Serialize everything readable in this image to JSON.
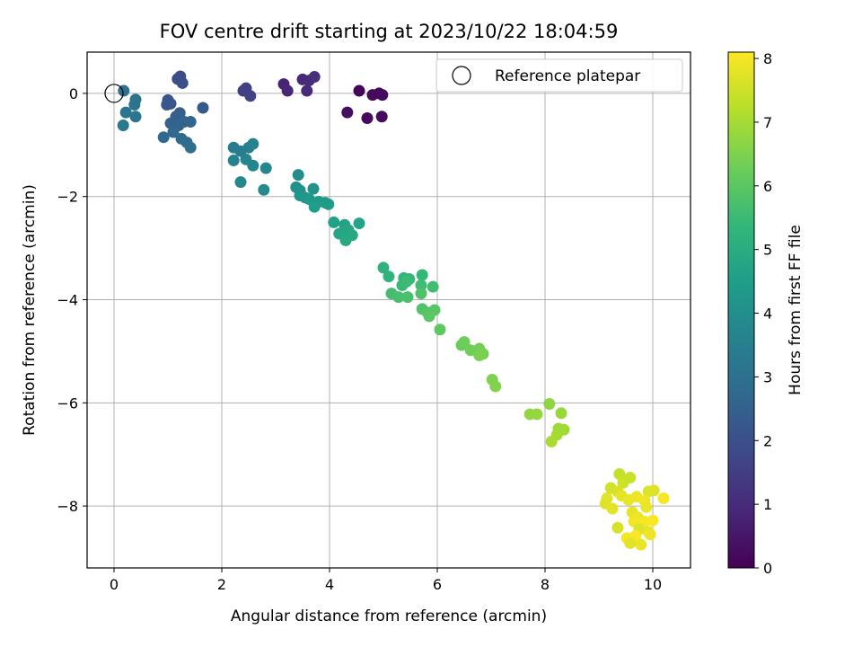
{
  "chart_data": {
    "type": "scatter",
    "title": "FOV centre drift starting at 2023/10/22 18:04:59",
    "xlabel": "Angular distance from reference (arcmin)",
    "ylabel": "Rotation from reference (arcmin)",
    "xlim": [
      -0.5,
      10.7
    ],
    "ylim": [
      -9.2,
      0.8
    ],
    "xticks": [
      0,
      2,
      4,
      6,
      8,
      10
    ],
    "yticks": [
      0,
      -2,
      -4,
      -6,
      -8
    ],
    "grid": true,
    "legend": {
      "placement": "top-right",
      "entries": [
        "Reference platepar"
      ]
    },
    "reference_point": {
      "name": "Reference platepar",
      "x": 0,
      "y": 0
    },
    "colorbar": {
      "label": "Hours from first FF file",
      "min": 0,
      "max": 8.1,
      "ticks": [
        0,
        1,
        2,
        3,
        4,
        5,
        6,
        7,
        8
      ],
      "colormap": "viridis"
    },
    "colormap_stops": [
      "#440154",
      "#482878",
      "#3e4989",
      "#31688e",
      "#26828e",
      "#1f9e89",
      "#35b779",
      "#6ece58",
      "#b5de2b",
      "#fde725"
    ],
    "points": [
      {
        "x": 4.55,
        "y": 0.05,
        "c": 0.1
      },
      {
        "x": 4.8,
        "y": -0.03,
        "c": 0.2
      },
      {
        "x": 4.92,
        "y": 0.0,
        "c": 0.15
      },
      {
        "x": 4.98,
        "y": -0.03,
        "c": 0.25
      },
      {
        "x": 4.33,
        "y": -0.37,
        "c": 0.3
      },
      {
        "x": 4.7,
        "y": -0.48,
        "c": 0.2
      },
      {
        "x": 4.97,
        "y": -0.45,
        "c": 0.25
      },
      {
        "x": 3.15,
        "y": 0.18,
        "c": 0.8
      },
      {
        "x": 3.22,
        "y": 0.05,
        "c": 0.85
      },
      {
        "x": 3.5,
        "y": 0.27,
        "c": 0.9
      },
      {
        "x": 3.58,
        "y": 0.05,
        "c": 0.95
      },
      {
        "x": 3.62,
        "y": 0.25,
        "c": 1.0
      },
      {
        "x": 3.72,
        "y": 0.32,
        "c": 1.05
      },
      {
        "x": 2.4,
        "y": 0.05,
        "c": 1.5
      },
      {
        "x": 2.45,
        "y": 0.1,
        "c": 1.55
      },
      {
        "x": 2.53,
        "y": -0.05,
        "c": 1.6
      },
      {
        "x": 1.18,
        "y": 0.28,
        "c": 1.9
      },
      {
        "x": 1.23,
        "y": 0.33,
        "c": 1.95
      },
      {
        "x": 1.27,
        "y": 0.2,
        "c": 2.0
      },
      {
        "x": 1.0,
        "y": -0.13,
        "c": 2.1
      },
      {
        "x": 1.05,
        "y": -0.2,
        "c": 2.15
      },
      {
        "x": 0.98,
        "y": -0.22,
        "c": 2.2
      },
      {
        "x": 1.65,
        "y": -0.28,
        "c": 2.3
      },
      {
        "x": 1.22,
        "y": -0.38,
        "c": 2.4
      },
      {
        "x": 1.15,
        "y": -0.45,
        "c": 2.45
      },
      {
        "x": 1.05,
        "y": -0.58,
        "c": 2.5
      },
      {
        "x": 1.2,
        "y": -0.62,
        "c": 2.55
      },
      {
        "x": 1.3,
        "y": -0.55,
        "c": 2.6
      },
      {
        "x": 1.42,
        "y": -0.55,
        "c": 2.65
      },
      {
        "x": 1.1,
        "y": -0.75,
        "c": 2.7
      },
      {
        "x": 0.92,
        "y": -0.85,
        "c": 2.75
      },
      {
        "x": 1.25,
        "y": -0.88,
        "c": 2.8
      },
      {
        "x": 1.35,
        "y": -0.95,
        "c": 2.85
      },
      {
        "x": 1.42,
        "y": -1.05,
        "c": 2.9
      },
      {
        "x": 0.18,
        "y": 0.05,
        "c": 3.0
      },
      {
        "x": 0.4,
        "y": -0.12,
        "c": 3.05
      },
      {
        "x": 0.38,
        "y": -0.22,
        "c": 3.1
      },
      {
        "x": 0.22,
        "y": -0.37,
        "c": 3.15
      },
      {
        "x": 0.4,
        "y": -0.45,
        "c": 3.2
      },
      {
        "x": 0.17,
        "y": -0.62,
        "c": 3.25
      },
      {
        "x": 2.22,
        "y": -1.05,
        "c": 3.4
      },
      {
        "x": 2.35,
        "y": -1.12,
        "c": 3.45
      },
      {
        "x": 2.5,
        "y": -1.05,
        "c": 3.5
      },
      {
        "x": 2.58,
        "y": -0.98,
        "c": 3.55
      },
      {
        "x": 2.22,
        "y": -1.3,
        "c": 3.6
      },
      {
        "x": 2.45,
        "y": -1.28,
        "c": 3.65
      },
      {
        "x": 2.58,
        "y": -1.4,
        "c": 3.7
      },
      {
        "x": 2.82,
        "y": -1.45,
        "c": 3.75
      },
      {
        "x": 2.35,
        "y": -1.72,
        "c": 3.8
      },
      {
        "x": 2.78,
        "y": -1.87,
        "c": 3.85
      },
      {
        "x": 3.42,
        "y": -1.58,
        "c": 4.0
      },
      {
        "x": 3.38,
        "y": -1.82,
        "c": 4.05
      },
      {
        "x": 3.45,
        "y": -1.88,
        "c": 4.1
      },
      {
        "x": 3.7,
        "y": -1.85,
        "c": 4.15
      },
      {
        "x": 3.45,
        "y": -1.98,
        "c": 4.2
      },
      {
        "x": 3.55,
        "y": -2.02,
        "c": 4.25
      },
      {
        "x": 3.62,
        "y": -2.05,
        "c": 4.3
      },
      {
        "x": 3.8,
        "y": -2.1,
        "c": 4.35
      },
      {
        "x": 3.92,
        "y": -2.12,
        "c": 4.4
      },
      {
        "x": 3.98,
        "y": -2.15,
        "c": 4.45
      },
      {
        "x": 3.72,
        "y": -2.2,
        "c": 4.5
      },
      {
        "x": 4.08,
        "y": -2.5,
        "c": 4.6
      },
      {
        "x": 4.28,
        "y": -2.55,
        "c": 4.65
      },
      {
        "x": 4.55,
        "y": -2.52,
        "c": 4.7
      },
      {
        "x": 4.18,
        "y": -2.72,
        "c": 4.75
      },
      {
        "x": 4.35,
        "y": -2.65,
        "c": 4.8
      },
      {
        "x": 4.42,
        "y": -2.75,
        "c": 4.85
      },
      {
        "x": 4.3,
        "y": -2.85,
        "c": 4.9
      },
      {
        "x": 5.0,
        "y": -3.38,
        "c": 5.2
      },
      {
        "x": 5.1,
        "y": -3.55,
        "c": 5.25
      },
      {
        "x": 5.38,
        "y": -3.58,
        "c": 5.3
      },
      {
        "x": 5.48,
        "y": -3.6,
        "c": 5.35
      },
      {
        "x": 5.72,
        "y": -3.52,
        "c": 5.4
      },
      {
        "x": 5.35,
        "y": -3.72,
        "c": 5.45
      },
      {
        "x": 5.43,
        "y": -3.65,
        "c": 5.5
      },
      {
        "x": 5.7,
        "y": -3.72,
        "c": 5.55
      },
      {
        "x": 5.92,
        "y": -3.75,
        "c": 5.6
      },
      {
        "x": 5.15,
        "y": -3.88,
        "c": 5.65
      },
      {
        "x": 5.28,
        "y": -3.95,
        "c": 5.7
      },
      {
        "x": 5.45,
        "y": -3.95,
        "c": 5.75
      },
      {
        "x": 5.7,
        "y": -3.88,
        "c": 5.8
      },
      {
        "x": 5.72,
        "y": -4.18,
        "c": 5.85
      },
      {
        "x": 5.82,
        "y": -4.25,
        "c": 5.9
      },
      {
        "x": 5.95,
        "y": -4.2,
        "c": 5.95
      },
      {
        "x": 5.85,
        "y": -4.32,
        "c": 6.0
      },
      {
        "x": 6.05,
        "y": -4.58,
        "c": 6.05
      },
      {
        "x": 6.45,
        "y": -4.88,
        "c": 6.2
      },
      {
        "x": 6.5,
        "y": -4.82,
        "c": 6.25
      },
      {
        "x": 6.62,
        "y": -4.98,
        "c": 6.3
      },
      {
        "x": 6.78,
        "y": -4.95,
        "c": 6.35
      },
      {
        "x": 6.85,
        "y": -5.05,
        "c": 6.4
      },
      {
        "x": 6.78,
        "y": -5.08,
        "c": 6.45
      },
      {
        "x": 7.02,
        "y": -5.55,
        "c": 6.5
      },
      {
        "x": 7.08,
        "y": -5.68,
        "c": 6.55
      },
      {
        "x": 8.08,
        "y": -6.02,
        "c": 6.7
      },
      {
        "x": 7.72,
        "y": -6.22,
        "c": 6.75
      },
      {
        "x": 7.85,
        "y": -6.22,
        "c": 6.8
      },
      {
        "x": 8.3,
        "y": -6.2,
        "c": 6.85
      },
      {
        "x": 8.25,
        "y": -6.5,
        "c": 6.9
      },
      {
        "x": 8.35,
        "y": -6.52,
        "c": 6.95
      },
      {
        "x": 8.22,
        "y": -6.62,
        "c": 7.0
      },
      {
        "x": 8.12,
        "y": -6.75,
        "c": 7.05
      },
      {
        "x": 9.38,
        "y": -7.38,
        "c": 7.4
      },
      {
        "x": 9.58,
        "y": -7.45,
        "c": 7.45
      },
      {
        "x": 9.45,
        "y": -7.55,
        "c": 7.5
      },
      {
        "x": 9.22,
        "y": -7.65,
        "c": 7.55
      },
      {
        "x": 9.35,
        "y": -7.72,
        "c": 7.6
      },
      {
        "x": 9.92,
        "y": -7.72,
        "c": 7.65
      },
      {
        "x": 10.02,
        "y": -7.7,
        "c": 7.7
      },
      {
        "x": 9.15,
        "y": -7.85,
        "c": 7.75
      },
      {
        "x": 9.42,
        "y": -7.8,
        "c": 7.8
      },
      {
        "x": 9.55,
        "y": -7.88,
        "c": 7.85
      },
      {
        "x": 9.7,
        "y": -7.82,
        "c": 7.9
      },
      {
        "x": 9.85,
        "y": -7.9,
        "c": 7.95
      },
      {
        "x": 10.2,
        "y": -7.85,
        "c": 8.0
      },
      {
        "x": 9.12,
        "y": -7.95,
        "c": 7.7
      },
      {
        "x": 9.25,
        "y": -8.05,
        "c": 7.75
      },
      {
        "x": 9.62,
        "y": -8.12,
        "c": 7.8
      },
      {
        "x": 9.88,
        "y": -8.02,
        "c": 7.85
      },
      {
        "x": 9.72,
        "y": -8.22,
        "c": 7.9
      },
      {
        "x": 9.65,
        "y": -8.3,
        "c": 7.95
      },
      {
        "x": 9.85,
        "y": -8.3,
        "c": 8.0
      },
      {
        "x": 10.0,
        "y": -8.28,
        "c": 8.05
      },
      {
        "x": 9.35,
        "y": -8.42,
        "c": 7.6
      },
      {
        "x": 9.75,
        "y": -8.45,
        "c": 7.7
      },
      {
        "x": 9.92,
        "y": -8.5,
        "c": 7.8
      },
      {
        "x": 9.95,
        "y": -8.55,
        "c": 7.9
      },
      {
        "x": 9.52,
        "y": -8.62,
        "c": 8.0
      },
      {
        "x": 9.68,
        "y": -8.58,
        "c": 8.05
      },
      {
        "x": 9.58,
        "y": -8.72,
        "c": 7.75
      },
      {
        "x": 9.78,
        "y": -8.75,
        "c": 7.85
      }
    ]
  }
}
